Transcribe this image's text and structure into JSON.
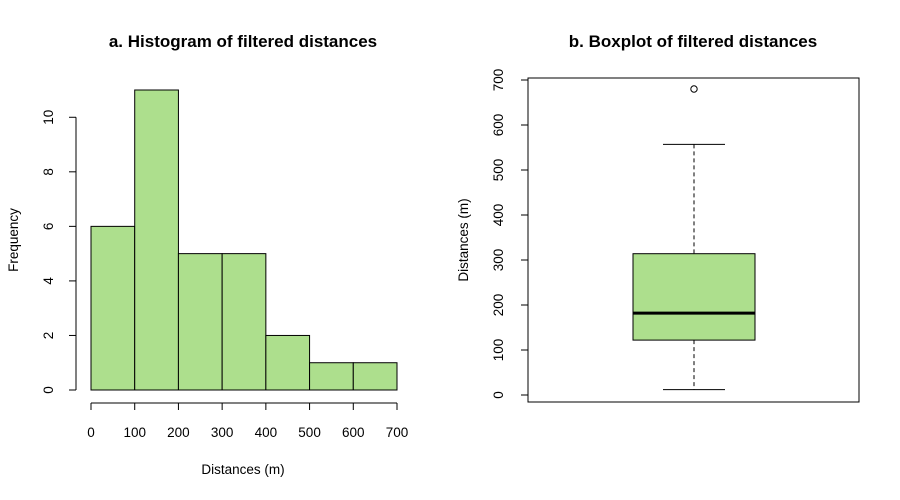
{
  "chart_data": [
    {
      "type": "bar",
      "title": "a. Histogram of filtered distances",
      "xlabel": "Distances (m)",
      "ylabel": "Frequency",
      "bins": [
        [
          0,
          100
        ],
        [
          100,
          200
        ],
        [
          200,
          300
        ],
        [
          300,
          400
        ],
        [
          400,
          500
        ],
        [
          500,
          600
        ],
        [
          600,
          700
        ]
      ],
      "values": [
        6,
        11,
        5,
        5,
        2,
        1,
        1
      ],
      "xlim": [
        0,
        700
      ],
      "ylim": [
        0,
        11
      ],
      "xticks": [
        "0",
        "100",
        "200",
        "300",
        "400",
        "500",
        "600",
        "700"
      ],
      "yticks": [
        "0",
        "2",
        "4",
        "6",
        "8",
        "10"
      ],
      "fill_color": "#addf8d",
      "grid": false
    },
    {
      "type": "box",
      "title": "b. Boxplot of filtered distances",
      "xlabel": "",
      "ylabel": "Distances (m)",
      "whisker_low": 12,
      "q1": 122,
      "median": 182,
      "q3": 314,
      "whisker_high": 557,
      "outliers": [
        680
      ],
      "ylim": [
        0,
        700
      ],
      "yticks": [
        "0",
        "100",
        "200",
        "300",
        "400",
        "500",
        "600",
        "700"
      ],
      "fill_color": "#addf8d",
      "grid": false
    }
  ]
}
